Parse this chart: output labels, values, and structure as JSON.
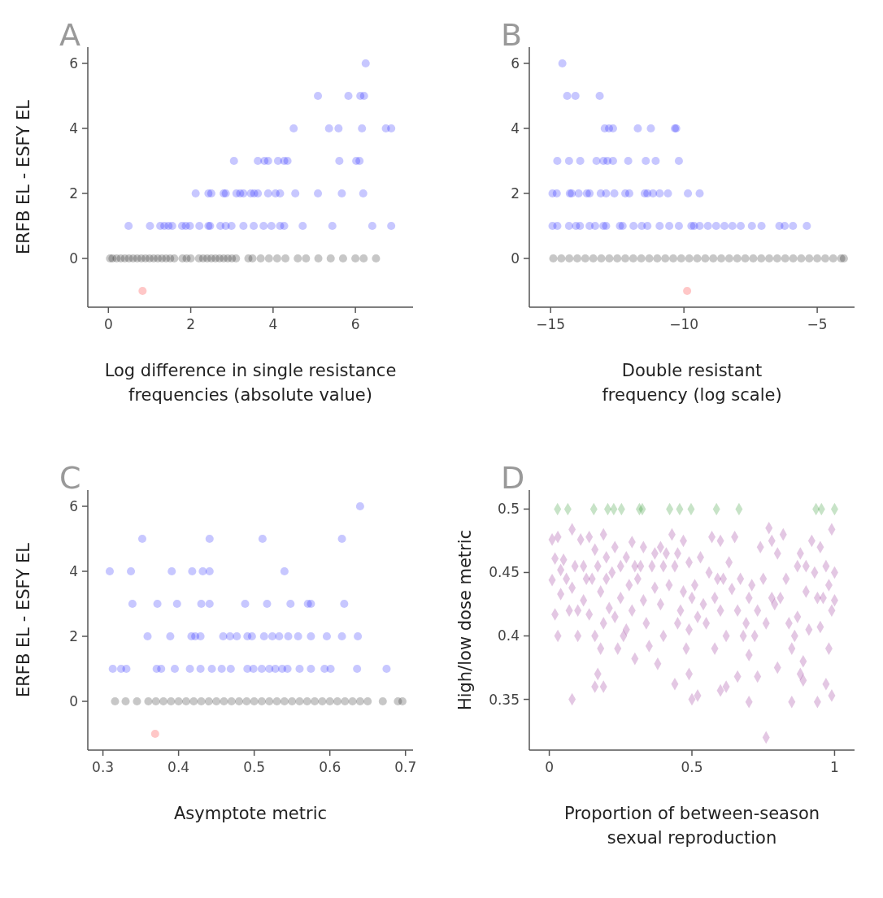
{
  "chart_data": [
    {
      "type": "scatter",
      "title": "A",
      "xlabel": "Log difference in single resistance frequencies (absolute value)",
      "ylabel": "ERFB EL - ESFY EL",
      "marker": "circle",
      "xlim": [
        -0.5,
        7.4
      ],
      "ylim": [
        -1.5,
        6.5
      ],
      "xticks": [
        0,
        2,
        4,
        6
      ],
      "yticks": [
        0,
        2,
        4,
        6
      ],
      "series": [
        {
          "color": "#0000ff",
          "x": [
            6.25,
            5.09,
            5.83,
            6.12,
            6.21,
            4.5,
            5.36,
            5.59,
            6.16,
            6.74,
            6.87,
            3.05,
            3.63,
            3.79,
            3.88,
            4.12,
            4.27,
            4.35,
            5.61,
            6.02,
            6.1,
            2.12,
            2.43,
            2.5,
            2.8,
            2.85,
            3.11,
            3.2,
            3.28,
            3.46,
            3.54,
            3.63,
            3.88,
            4.06,
            4.17,
            4.54,
            5.09,
            5.67,
            6.19,
            0.49,
            1.01,
            1.26,
            1.36,
            1.46,
            1.55,
            1.79,
            1.88,
            1.98,
            2.21,
            2.43,
            2.47,
            2.72,
            2.85,
            2.99,
            3.28,
            3.53,
            3.77,
            3.96,
            4.17,
            4.27,
            4.72,
            5.44,
            6.41,
            6.87
          ],
          "values": [
            6,
            5,
            5,
            5,
            5,
            4,
            4,
            4,
            4,
            4,
            4,
            3,
            3,
            3,
            3,
            3,
            3,
            3,
            3,
            3,
            3,
            2,
            2,
            2,
            2,
            2,
            2,
            2,
            2,
            2,
            2,
            2,
            2,
            2,
            2,
            2,
            2,
            2,
            2,
            1,
            1,
            1,
            1,
            1,
            1,
            1,
            1,
            1,
            1,
            1,
            1,
            1,
            1,
            1,
            1,
            1,
            1,
            1,
            1,
            1,
            1,
            1,
            1,
            1
          ]
        },
        {
          "color": "#000000",
          "x": [
            0.04,
            0.1,
            0.2,
            0.3,
            0.4,
            0.5,
            0.6,
            0.7,
            0.8,
            0.9,
            1.0,
            1.1,
            1.2,
            1.3,
            1.4,
            1.5,
            1.6,
            1.8,
            1.9,
            2.0,
            2.2,
            2.3,
            2.4,
            2.5,
            2.6,
            2.7,
            2.8,
            2.9,
            3.0,
            3.1,
            3.4,
            3.5,
            3.7,
            3.9,
            4.1,
            4.3,
            4.6,
            4.8,
            5.1,
            5.4,
            5.7,
            6.0,
            6.2,
            6.5
          ],
          "values": [
            0,
            0,
            0,
            0,
            0,
            0,
            0,
            0,
            0,
            0,
            0,
            0,
            0,
            0,
            0,
            0,
            0,
            0,
            0,
            0,
            0,
            0,
            0,
            0,
            0,
            0,
            0,
            0,
            0,
            0,
            0,
            0,
            0,
            0,
            0,
            0,
            0,
            0,
            0,
            0,
            0,
            0,
            0,
            0
          ]
        },
        {
          "color": "#ff0000",
          "x": [
            0.83
          ],
          "values": [
            -1
          ]
        }
      ]
    },
    {
      "type": "scatter",
      "title": "B",
      "xlabel": "Double resistant frequency (log scale)",
      "marker": "circle",
      "xlim": [
        -15.8,
        -3.6
      ],
      "ylim": [
        -1.5,
        6.5
      ],
      "xticks": [
        {
          "value": -15,
          "label": "−15"
        },
        {
          "value": -10,
          "label": "−10"
        },
        {
          "value": -5,
          "label": "−5"
        }
      ],
      "yticks": [
        0,
        2,
        4,
        6
      ],
      "series": [
        {
          "color": "#0000ff",
          "x": [
            -14.56,
            -14.38,
            -14.07,
            -13.16,
            -12.97,
            -12.81,
            -12.66,
            -11.73,
            -11.24,
            -10.34,
            -10.29,
            -14.75,
            -14.31,
            -13.89,
            -13.28,
            -13.02,
            -12.87,
            -12.66,
            -12.09,
            -11.43,
            -11.06,
            -10.19,
            -14.93,
            -14.77,
            -14.28,
            -14.21,
            -13.95,
            -13.64,
            -13.54,
            -13.12,
            -12.92,
            -12.61,
            -12.2,
            -12.05,
            -11.47,
            -11.37,
            -11.16,
            -10.91,
            -10.6,
            -9.85,
            -9.41,
            -14.93,
            -14.75,
            -14.31,
            -14.05,
            -13.9,
            -13.54,
            -13.33,
            -13.02,
            -12.92,
            -12.4,
            -12.3,
            -11.89,
            -11.58,
            -11.37,
            -10.91,
            -10.55,
            -10.19,
            -9.72,
            -9.62,
            -9.41,
            -9.1,
            -8.79,
            -8.48,
            -8.18,
            -7.87,
            -7.45,
            -7.09,
            -6.42,
            -6.22,
            -5.91,
            -5.39
          ],
          "values": [
            6,
            5,
            5,
            5,
            4,
            4,
            4,
            4,
            4,
            4,
            4,
            3,
            3,
            3,
            3,
            3,
            3,
            3,
            3,
            3,
            3,
            3,
            2,
            2,
            2,
            2,
            2,
            2,
            2,
            2,
            2,
            2,
            2,
            2,
            2,
            2,
            2,
            2,
            2,
            2,
            2,
            1,
            1,
            1,
            1,
            1,
            1,
            1,
            1,
            1,
            1,
            1,
            1,
            1,
            1,
            1,
            1,
            1,
            1,
            1,
            1,
            1,
            1,
            1,
            1,
            1,
            1,
            1,
            1,
            1,
            1,
            1
          ]
        },
        {
          "color": "#000000",
          "x": [
            -14.9,
            -14.6,
            -14.3,
            -14.0,
            -13.7,
            -13.4,
            -13.1,
            -12.8,
            -12.5,
            -12.2,
            -11.9,
            -11.6,
            -11.3,
            -11.0,
            -10.7,
            -10.4,
            -10.1,
            -9.8,
            -9.5,
            -9.2,
            -8.9,
            -8.6,
            -8.3,
            -8.0,
            -7.7,
            -7.4,
            -7.1,
            -6.8,
            -6.5,
            -6.2,
            -5.9,
            -5.6,
            -5.3,
            -5.0,
            -4.7,
            -4.4,
            -4.1,
            -4.0
          ],
          "values": [
            0,
            0,
            0,
            0,
            0,
            0,
            0,
            0,
            0,
            0,
            0,
            0,
            0,
            0,
            0,
            0,
            0,
            0,
            0,
            0,
            0,
            0,
            0,
            0,
            0,
            0,
            0,
            0,
            0,
            0,
            0,
            0,
            0,
            0,
            0,
            0,
            0,
            0
          ]
        },
        {
          "color": "#ff0000",
          "x": [
            -9.88
          ],
          "values": [
            -1
          ]
        }
      ]
    },
    {
      "type": "scatter",
      "title": "C",
      "xlabel": "Asymptote metric",
      "ylabel": "ERFB EL - ESFY EL",
      "marker": "circle",
      "xlim": [
        0.28,
        0.71
      ],
      "ylim": [
        -1.5,
        6.5
      ],
      "xticks": [
        0.3,
        0.4,
        0.5,
        0.6,
        0.7
      ],
      "yticks": [
        0,
        2,
        4,
        6
      ],
      "series": [
        {
          "color": "#0000ff",
          "x": [
            0.64,
            0.352,
            0.441,
            0.511,
            0.616,
            0.309,
            0.337,
            0.391,
            0.418,
            0.432,
            0.441,
            0.54,
            0.339,
            0.372,
            0.398,
            0.43,
            0.441,
            0.488,
            0.517,
            0.548,
            0.571,
            0.575,
            0.619,
            0.359,
            0.389,
            0.417,
            0.422,
            0.429,
            0.459,
            0.468,
            0.477,
            0.491,
            0.497,
            0.513,
            0.524,
            0.533,
            0.545,
            0.558,
            0.575,
            0.596,
            0.616,
            0.637,
            0.313,
            0.324,
            0.331,
            0.371,
            0.377,
            0.395,
            0.415,
            0.429,
            0.444,
            0.457,
            0.469,
            0.491,
            0.499,
            0.51,
            0.52,
            0.528,
            0.537,
            0.544,
            0.56,
            0.575,
            0.593,
            0.601,
            0.636,
            0.675
          ],
          "values": [
            6,
            5,
            5,
            5,
            5,
            4,
            4,
            4,
            4,
            4,
            4,
            4,
            3,
            3,
            3,
            3,
            3,
            3,
            3,
            3,
            3,
            3,
            3,
            2,
            2,
            2,
            2,
            2,
            2,
            2,
            2,
            2,
            2,
            2,
            2,
            2,
            2,
            2,
            2,
            2,
            2,
            2,
            1,
            1,
            1,
            1,
            1,
            1,
            1,
            1,
            1,
            1,
            1,
            1,
            1,
            1,
            1,
            1,
            1,
            1,
            1,
            1,
            1,
            1,
            1,
            1
          ]
        },
        {
          "color": "#000000",
          "x": [
            0.316,
            0.33,
            0.345,
            0.36,
            0.37,
            0.38,
            0.39,
            0.4,
            0.41,
            0.42,
            0.43,
            0.44,
            0.45,
            0.46,
            0.47,
            0.48,
            0.49,
            0.5,
            0.51,
            0.52,
            0.53,
            0.54,
            0.55,
            0.56,
            0.57,
            0.58,
            0.59,
            0.6,
            0.61,
            0.62,
            0.63,
            0.64,
            0.65,
            0.67,
            0.69,
            0.696
          ],
          "values": [
            0,
            0,
            0,
            0,
            0,
            0,
            0,
            0,
            0,
            0,
            0,
            0,
            0,
            0,
            0,
            0,
            0,
            0,
            0,
            0,
            0,
            0,
            0,
            0,
            0,
            0,
            0,
            0,
            0,
            0,
            0,
            0,
            0,
            0,
            0,
            0
          ]
        },
        {
          "color": "#ff0000",
          "x": [
            0.369
          ],
          "values": [
            -1
          ]
        }
      ]
    },
    {
      "type": "scatter",
      "title": "D",
      "xlabel": "Proportion of between-season sexual reproduction",
      "ylabel": "High/low dose metric",
      "marker": "diamond",
      "xlim": [
        -0.07,
        1.07
      ],
      "ylim": [
        0.31,
        0.515
      ],
      "xticks": [
        0,
        0.5,
        1
      ],
      "yticks": [
        0.35,
        0.4,
        0.45,
        0.5
      ],
      "series": [
        {
          "color": "#800080",
          "x": [
            0.08,
            0.16,
            0.19,
            0.17,
            0.44,
            0.5,
            0.52,
            0.49,
            0.6,
            0.7,
            0.76,
            0.66,
            0.73,
            0.85,
            0.94,
            0.97,
            0.99,
            0.89,
            0.88,
            0.62,
            0.01,
            0.02,
            0.01,
            0.02,
            0.03,
            0.04,
            0.04,
            0.05,
            0.06,
            0.07,
            0.03,
            0.08,
            0.09,
            0.08,
            0.1,
            0.1,
            0.11,
            0.12,
            0.13,
            0.12,
            0.14,
            0.14,
            0.15,
            0.16,
            0.16,
            0.17,
            0.18,
            0.19,
            0.19,
            0.2,
            0.2,
            0.18,
            0.21,
            0.22,
            0.23,
            0.23,
            0.24,
            0.25,
            0.25,
            0.26,
            0.27,
            0.28,
            0.29,
            0.29,
            0.3,
            0.3,
            0.27,
            0.31,
            0.32,
            0.33,
            0.33,
            0.34,
            0.35,
            0.36,
            0.37,
            0.37,
            0.38,
            0.39,
            0.39,
            0.4,
            0.4,
            0.41,
            0.42,
            0.43,
            0.44,
            0.45,
            0.45,
            0.46,
            0.47,
            0.47,
            0.48,
            0.49,
            0.49,
            0.5,
            0.51,
            0.52,
            0.53,
            0.54,
            0.55,
            0.56,
            0.57,
            0.58,
            0.58,
            0.59,
            0.6,
            0.6,
            0.61,
            0.62,
            0.63,
            0.64,
            0.65,
            0.66,
            0.67,
            0.68,
            0.69,
            0.7,
            0.7,
            0.71,
            0.72,
            0.73,
            0.74,
            0.75,
            0.76,
            0.77,
            0.78,
            0.78,
            0.79,
            0.8,
            0.8,
            0.81,
            0.82,
            0.83,
            0.84,
            0.85,
            0.86,
            0.87,
            0.87,
            0.88,
            0.89,
            0.9,
            0.9,
            0.91,
            0.92,
            0.93,
            0.94,
            0.95,
            0.95,
            0.96,
            0.97,
            0.98,
            0.98,
            0.99,
            1.0,
            1.0,
            0.99
          ],
          "values": [
            0.35,
            0.36,
            0.36,
            0.37,
            0.362,
            0.35,
            0.353,
            0.37,
            0.357,
            0.348,
            0.32,
            0.368,
            0.368,
            0.348,
            0.348,
            0.362,
            0.353,
            0.365,
            0.37,
            0.36,
            0.476,
            0.461,
            0.444,
            0.417,
            0.478,
            0.452,
            0.433,
            0.46,
            0.445,
            0.42,
            0.4,
            0.484,
            0.455,
            0.438,
            0.42,
            0.4,
            0.476,
            0.455,
            0.445,
            0.428,
            0.478,
            0.417,
            0.445,
            0.468,
            0.4,
            0.455,
            0.435,
            0.48,
            0.41,
            0.462,
            0.445,
            0.39,
            0.422,
            0.45,
            0.47,
            0.415,
            0.39,
            0.455,
            0.43,
            0.4,
            0.462,
            0.44,
            0.474,
            0.42,
            0.455,
            0.382,
            0.405,
            0.445,
            0.455,
            0.428,
            0.47,
            0.41,
            0.392,
            0.455,
            0.438,
            0.465,
            0.378,
            0.47,
            0.425,
            0.455,
            0.4,
            0.465,
            0.44,
            0.48,
            0.455,
            0.41,
            0.465,
            0.42,
            0.475,
            0.435,
            0.39,
            0.458,
            0.405,
            0.43,
            0.44,
            0.415,
            0.462,
            0.425,
            0.41,
            0.45,
            0.478,
            0.43,
            0.39,
            0.445,
            0.475,
            0.42,
            0.445,
            0.4,
            0.458,
            0.437,
            0.478,
            0.42,
            0.445,
            0.4,
            0.41,
            0.385,
            0.43,
            0.44,
            0.4,
            0.42,
            0.47,
            0.445,
            0.41,
            0.485,
            0.475,
            0.43,
            0.425,
            0.465,
            0.375,
            0.43,
            0.48,
            0.445,
            0.41,
            0.39,
            0.4,
            0.455,
            0.415,
            0.465,
            0.38,
            0.455,
            0.435,
            0.405,
            0.475,
            0.45,
            0.43,
            0.47,
            0.407,
            0.43,
            0.455,
            0.44,
            0.39,
            0.484,
            0.428,
            0.45,
            0.42
          ]
        },
        {
          "color": "#008000",
          "x": [
            0.029,
            0.065,
            0.156,
            0.205,
            0.226,
            0.253,
            0.316,
            0.326,
            0.422,
            0.457,
            0.497,
            0.586,
            0.665,
            0.935,
            0.954,
            1.0
          ],
          "values": [
            0.5,
            0.5,
            0.5,
            0.5,
            0.5,
            0.5,
            0.5,
            0.5,
            0.5,
            0.5,
            0.5,
            0.5,
            0.5,
            0.5,
            0.5,
            0.5
          ]
        }
      ]
    }
  ]
}
